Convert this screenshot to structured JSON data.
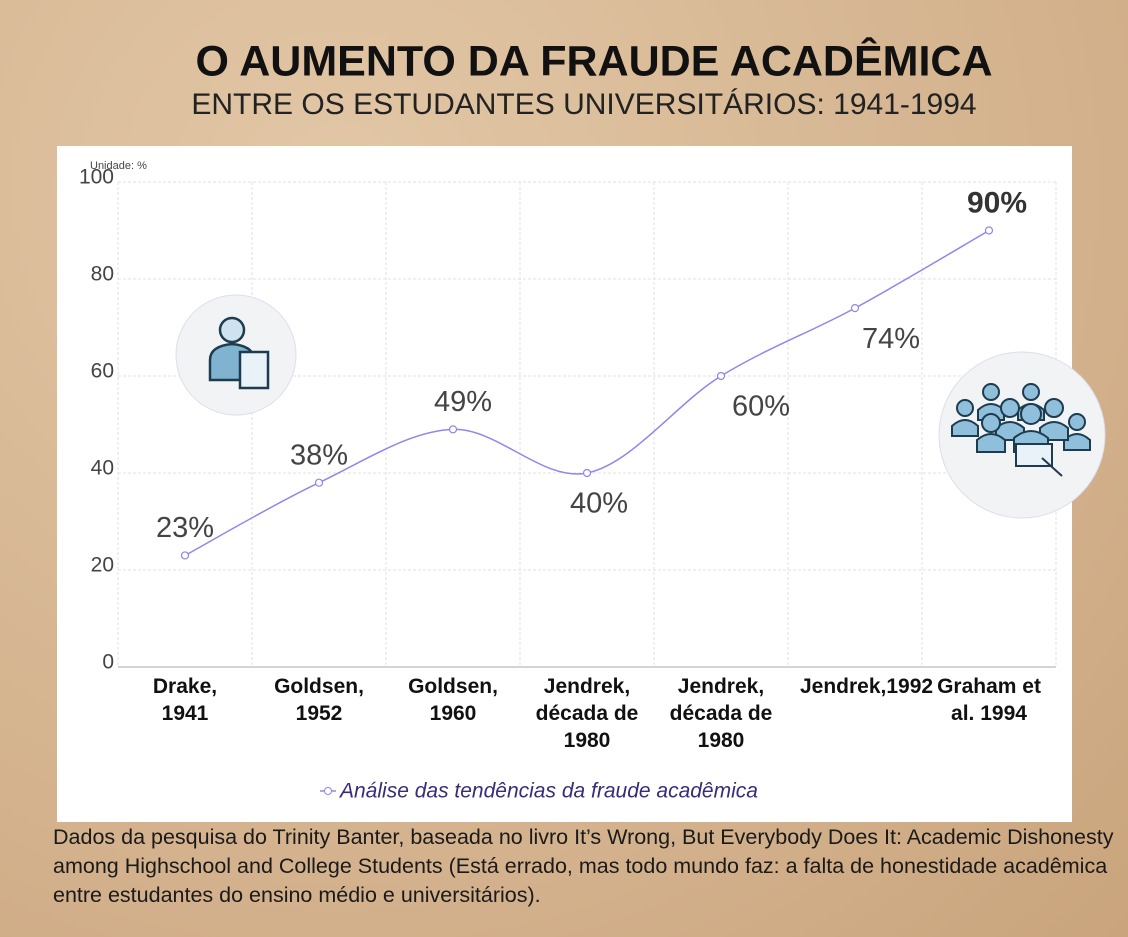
{
  "chart_data": {
    "type": "line",
    "title": "O AUMENTO DA FRAUDE ACADÊMICA",
    "subtitle": "ENTRE OS ESTUDANTES UNIVERSITÁRIOS: 1941-1994",
    "unit_label": "Unidade: %",
    "categories": [
      "Drake, 1941",
      "Goldsen, 1952",
      "Goldsen, 1960",
      "Jendrek, década de 1980",
      "Jendrek, década de 1980",
      "Jendrek,1992",
      "Graham et al. 1994"
    ],
    "series": [
      {
        "name": "Análise das tendências da fraude acadêmica",
        "color": "#8f86ee",
        "values": [
          23,
          38,
          49,
          40,
          60,
          74,
          90
        ],
        "value_labels": [
          "23%",
          "38%",
          "49%",
          "40%",
          "60%",
          "74%",
          "90%"
        ]
      }
    ],
    "ylim": [
      0,
      100
    ],
    "yticks": [
      0,
      20,
      40,
      60,
      80,
      100
    ],
    "grid": true
  },
  "footnote": "Dados da pesquisa do Trinity Banter, baseada no livro It’s Wrong, But Everybody Does It: Academic Dishonesty among Highschool and College Students (Está errado, mas todo mundo faz: a falta de honestidade acadêmica entre estudantes do ensino médio e universitários)."
}
